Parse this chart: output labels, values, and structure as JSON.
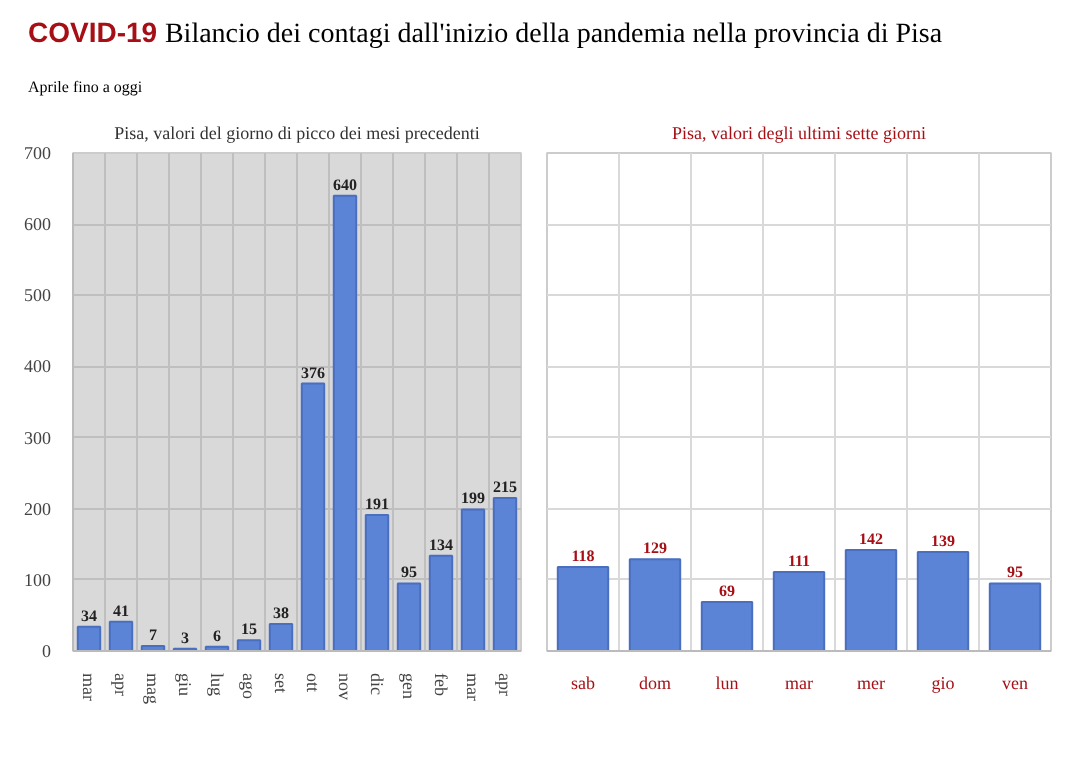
{
  "chart_data": [
    {
      "type": "bar",
      "title": "COVID-19 Bilancio dei contagi dall'inizio della pandemia nella provincia di Pisa",
      "subtitle": "Aprile fino a oggi",
      "annotations": [
        "Pisa, valori del giorno di picco dei mesi precedenti"
      ],
      "categories": [
        "mar",
        "apr",
        "mag",
        "giu",
        "lug",
        "ago",
        "set",
        "ott",
        "nov",
        "dic",
        "gen",
        "feb",
        "mar",
        "apr"
      ],
      "values": [
        34,
        41,
        7,
        3,
        6,
        15,
        38,
        376,
        640,
        191,
        95,
        134,
        199,
        215
      ],
      "color": "#5b83d6",
      "ylim": [
        0,
        700
      ],
      "yticks": [
        0,
        100,
        200,
        300,
        400,
        500,
        600,
        700
      ],
      "grid": true,
      "data_labels": true
    },
    {
      "type": "bar",
      "title": "Pisa, valori degli ultimi sette giorni",
      "categories": [
        "sab",
        "dom",
        "lun",
        "mar",
        "mer",
        "gio",
        "ven"
      ],
      "values": [
        118,
        129,
        69,
        111,
        142,
        139,
        95
      ],
      "color": "#5b83d6",
      "ylim": [
        0,
        700
      ],
      "yticks": [
        {
          "value": 0,
          "label": null
        },
        {
          "value": 100,
          "label": null
        },
        {
          "value": 200,
          "label": null
        },
        {
          "value": 300,
          "label": null
        },
        {
          "value": 400,
          "label": null
        },
        {
          "value": 500,
          "label": null
        },
        {
          "value": 600,
          "label": null
        },
        {
          "value": 700,
          "label": null
        }
      ],
      "grid": true,
      "data_labels": true,
      "tick_labels": "x"
    }
  ]
}
